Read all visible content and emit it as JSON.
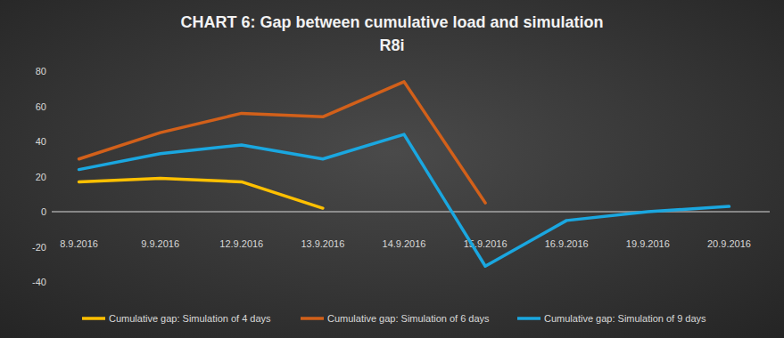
{
  "chart_data": {
    "type": "line",
    "title": "CHART 6: Gap between cumulative load and simulation",
    "subtitle": "R8i",
    "categories": [
      "8.9.2016",
      "9.9.2016",
      "12.9.2016",
      "13.9.2016",
      "14.9.2016",
      "15.9.2016",
      "16.9.2016",
      "19.9.2016",
      "20.9.2016"
    ],
    "series": [
      {
        "name": "Cumulative gap: Simulation of 4 days",
        "color": "#ffc000",
        "values": [
          17,
          19,
          17,
          2,
          null,
          null,
          null,
          null,
          null
        ]
      },
      {
        "name": "Cumulative gap: Simulation of 6 days",
        "color": "#d2601a",
        "values": [
          30,
          45,
          56,
          54,
          74,
          5,
          null,
          null,
          null
        ]
      },
      {
        "name": "Cumulative gap: Simulation of 9 days",
        "color": "#1aa7e0",
        "values": [
          24,
          33,
          38,
          30,
          44,
          -31,
          -5,
          0,
          3
        ]
      }
    ],
    "ylim": [
      -40,
      80
    ],
    "yticks": [
      -40,
      -20,
      0,
      20,
      40,
      60,
      80
    ],
    "grid": false,
    "legend": "bottom"
  }
}
